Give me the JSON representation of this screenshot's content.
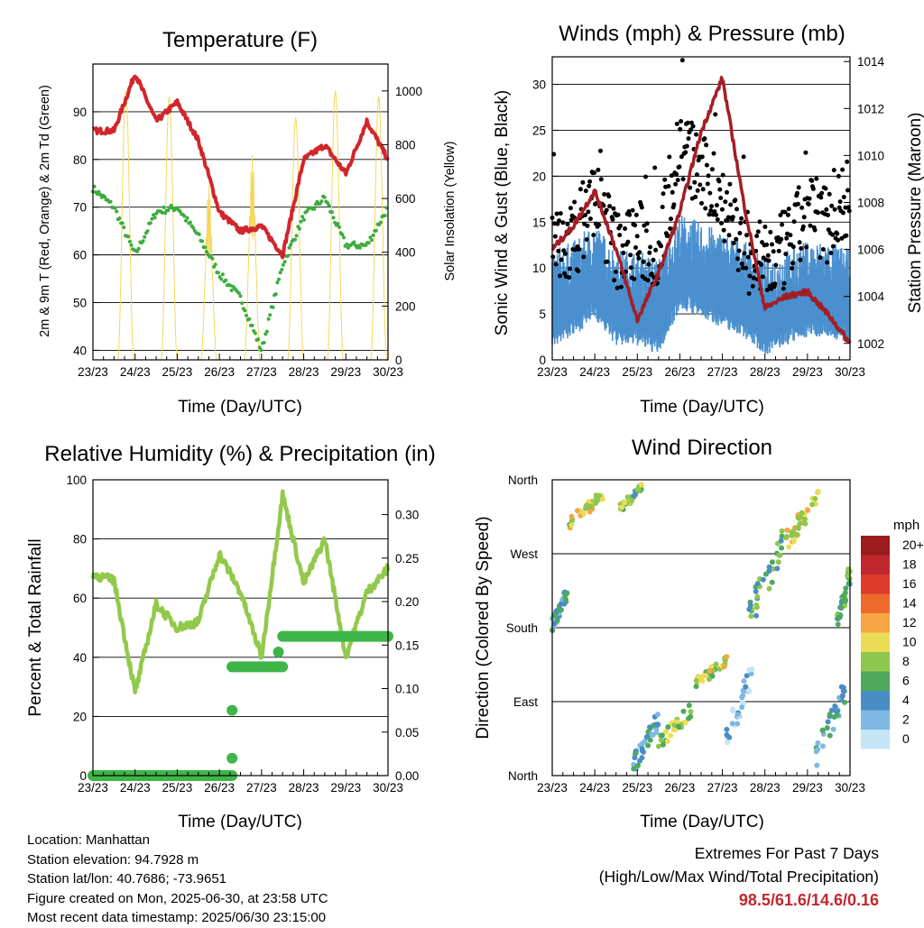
{
  "x_tick_labels": [
    "23/23",
    "24/23",
    "25/23",
    "26/23",
    "27/23",
    "28/23",
    "29/23",
    "30/23"
  ],
  "time_axis_label": "Time (Day/UTC)",
  "panels": {
    "temperature": {
      "title": "Temperature (F)",
      "ylabel_left": "2m & 9m T (Red, Orange) & 2m Td (Green)",
      "ylabel_right": "Solar Insolation (Yellow)",
      "left_ticks": [
        "40",
        "50",
        "60",
        "70",
        "80",
        "90"
      ],
      "right_ticks": [
        "0",
        "200",
        "400",
        "600",
        "800",
        "1000"
      ]
    },
    "winds": {
      "title": "Winds (mph) & Pressure (mb)",
      "ylabel_left": "Sonic Wind & Gust (Blue, Black)",
      "ylabel_right": "Station Pressure (Maroon)",
      "left_ticks": [
        "0",
        "5",
        "10",
        "15",
        "20",
        "25",
        "30"
      ],
      "right_ticks": [
        "1002",
        "1004",
        "1006",
        "1008",
        "1010",
        "1012",
        "1014"
      ]
    },
    "humidity": {
      "title": "Relative Humidity (%) & Precipitation (in)",
      "ylabel_left": "Percent & Total Rainfall",
      "left_ticks": [
        "0",
        "20",
        "40",
        "60",
        "80",
        "100"
      ],
      "right_ticks": [
        "0.00",
        "0.05",
        "0.10",
        "0.15",
        "0.20",
        "0.25",
        "0.30"
      ]
    },
    "wind_direction": {
      "title": "Wind Direction",
      "ylabel_left": "Direction (Colored By Speed)",
      "dir_ticks": [
        "North",
        "East",
        "South",
        "West",
        "North"
      ],
      "legend_title": "mph",
      "legend_labels": [
        "20+",
        "18",
        "16",
        "14",
        "12",
        "10",
        "8",
        "6",
        "4",
        "2",
        "0"
      ],
      "legend_colors": [
        "#9b1b1e",
        "#c0282d",
        "#dd3a2b",
        "#ee6a2c",
        "#f7a544",
        "#ecdc55",
        "#8fc74e",
        "#4daa5b",
        "#4a8dc6",
        "#7fb8e3",
        "#c5e4f6"
      ]
    }
  },
  "info": {
    "location": "Location: Manhattan",
    "elevation": "Station elevation: 94.7928 m",
    "latlon": "Station lat/lon: 40.7686; -73.9651",
    "created": "Figure created on Mon, 2025-06-30, at 23:58 UTC",
    "recent": "Most recent data timestamp: 2025/06/30 23:15:00"
  },
  "extremes": {
    "heading": "Extremes For Past 7 Days",
    "subheading": "(High/Low/Max Wind/Total Precipitation)",
    "values": "98.5/61.6/14.6/0.16"
  },
  "colors": {
    "temp_red": "#d0262c",
    "dewpoint_green": "#3cad3c",
    "solar_yellow": "#f5d75a",
    "wind_blue": "#4a90cf",
    "gust_black": "#000000",
    "pressure_maroon": "#a31e24",
    "rh_green": "#92c94b",
    "precip_green": "#3fb549"
  },
  "chart_data": [
    {
      "type": "line",
      "panel": "temperature",
      "x": [
        0,
        0.5,
        1,
        1.5,
        2,
        2.5,
        3,
        3.5,
        4,
        4.5,
        5,
        5.5,
        6,
        6.5,
        7
      ],
      "xlim": [
        0,
        7
      ],
      "ylim": [
        38,
        100
      ],
      "y2lim": [
        0,
        1100
      ],
      "series": [
        {
          "name": "2m T",
          "axis": "left",
          "values": [
            86,
            86,
            98,
            88,
            92,
            84,
            69,
            65,
            66,
            60,
            80,
            83,
            77,
            88,
            80
          ]
        },
        {
          "name": "2m Td",
          "axis": "left",
          "values": [
            74,
            70,
            60,
            69,
            70,
            64,
            56,
            51,
            40,
            58,
            68,
            72,
            62,
            62,
            70
          ]
        },
        {
          "name": "Solar Insolation",
          "axis": "right",
          "daily_peak": [
            950,
            1000,
            980,
            650,
            760,
            900,
            1000,
            980
          ]
        }
      ]
    },
    {
      "type": "scatter",
      "panel": "winds",
      "x": [
        0,
        0.5,
        1,
        1.5,
        2,
        2.5,
        3,
        3.5,
        4,
        4.5,
        5,
        5.5,
        6,
        6.5,
        7
      ],
      "xlim": [
        0,
        7
      ],
      "ylim": [
        0,
        33
      ],
      "y2lim": [
        1001.3,
        1014.2
      ],
      "series": [
        {
          "name": "Sonic Wind",
          "axis": "left",
          "values": [
            6,
            7,
            9,
            6,
            6,
            5,
            10,
            9,
            8,
            7,
            5,
            6,
            7,
            7,
            6
          ]
        },
        {
          "name": "Gust",
          "axis": "left",
          "values": [
            12,
            13,
            18,
            12,
            13,
            12,
            24,
            20,
            18,
            12,
            10,
            12,
            16,
            15,
            18
          ]
        },
        {
          "name": "Station Pressure",
          "axis": "right",
          "values": [
            1006,
            1007,
            1008.5,
            1006,
            1003,
            1005,
            1007.6,
            1011,
            1013.3,
            1008,
            1003.5,
            1004,
            1004.2,
            1003.2,
            1002
          ]
        }
      ]
    },
    {
      "type": "line",
      "panel": "humidity",
      "x": [
        0,
        0.5,
        1,
        1.5,
        2,
        2.5,
        3,
        3.5,
        4,
        4.5,
        5,
        5.5,
        6,
        6.5,
        7
      ],
      "xlim": [
        0,
        7
      ],
      "ylim": [
        0,
        100
      ],
      "y2lim": [
        0,
        0.34
      ],
      "series": [
        {
          "name": "Relative Humidity",
          "axis": "left",
          "values": [
            68,
            66,
            28,
            58,
            50,
            52,
            75,
            62,
            40,
            95,
            65,
            80,
            40,
            62,
            70
          ]
        },
        {
          "name": "Total Precipitation",
          "axis": "right",
          "steps": [
            [
              0,
              0
            ],
            [
              3.3,
              0.125
            ],
            [
              4.5,
              0.16
            ],
            [
              7,
              0.16
            ]
          ]
        }
      ]
    },
    {
      "type": "scatter",
      "panel": "wind_direction",
      "ylim": [
        0,
        360
      ],
      "y_tick_degrees": [
        0,
        90,
        180,
        270,
        360
      ],
      "xlim": [
        0,
        7
      ],
      "clusters": [
        {
          "x": [
            0,
            0.35
          ],
          "dir": [
            175,
            230
          ],
          "speed": 4
        },
        {
          "x": [
            0.4,
            1.2
          ],
          "dir": [
            300,
            350
          ],
          "speed": 9
        },
        {
          "x": [
            1.6,
            2.1
          ],
          "dir": [
            320,
            355
          ],
          "speed": 7
        },
        {
          "x": [
            1.9,
            2.5
          ],
          "dir": [
            0,
            80
          ],
          "speed": 4
        },
        {
          "x": [
            2.5,
            3.3
          ],
          "dir": [
            30,
            90
          ],
          "speed": 8
        },
        {
          "x": [
            3.3,
            4.1
          ],
          "dir": [
            100,
            150
          ],
          "speed": 9
        },
        {
          "x": [
            4.1,
            4.7
          ],
          "dir": [
            30,
            140
          ],
          "speed": 2
        },
        {
          "x": [
            4.6,
            5.4
          ],
          "dir": [
            170,
            300
          ],
          "speed": 6
        },
        {
          "x": [
            5.5,
            6.3
          ],
          "dir": [
            270,
            360
          ],
          "speed": 10
        },
        {
          "x": [
            6.2,
            6.9
          ],
          "dir": [
            5,
            120
          ],
          "speed": 4
        },
        {
          "x": [
            6.7,
            7
          ],
          "dir": [
            170,
            260
          ],
          "speed": 6
        }
      ]
    }
  ]
}
